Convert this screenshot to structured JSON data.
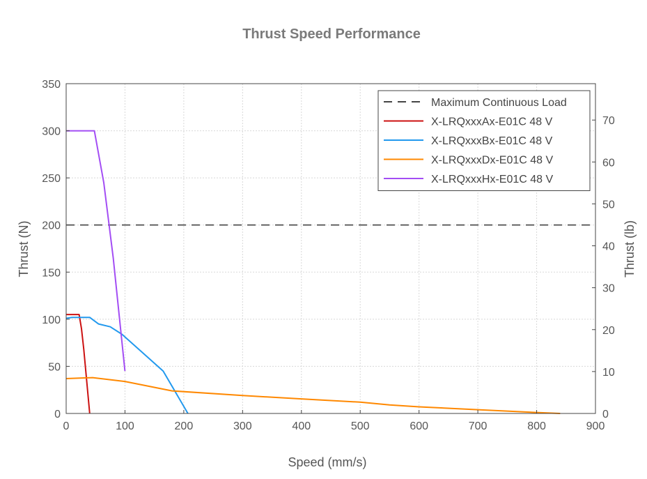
{
  "chart_data": {
    "type": "line",
    "title": "Thrust Speed Performance",
    "xlabel": "Speed (mm/s)",
    "ylabel": "Thrust (N)",
    "y2label": "Thrust (lb)",
    "xlim": [
      0,
      900
    ],
    "ylim": [
      0,
      350
    ],
    "y2lim": [
      0,
      78.68
    ],
    "xticks": [
      0,
      100,
      200,
      300,
      400,
      500,
      600,
      700,
      800,
      900
    ],
    "yticks": [
      0,
      50,
      100,
      150,
      200,
      250,
      300,
      350
    ],
    "y2ticks": [
      0,
      10,
      20,
      30,
      40,
      50,
      60,
      70
    ],
    "grid": true,
    "legend_position": "top-right",
    "reference_line": {
      "name": "Maximum Continuous Load",
      "y": 200,
      "color": "#444444",
      "style": "dashed"
    },
    "series": [
      {
        "name": "X-LRQxxxAx-E01C 48 V",
        "color": "#cc1111",
        "x": [
          0,
          22,
          26,
          30,
          40
        ],
        "y": [
          105,
          105,
          90,
          68,
          0
        ]
      },
      {
        "name": "X-LRQxxxBx-E01C 48 V",
        "color": "#2299ee",
        "x": [
          0,
          10,
          40,
          55,
          75,
          95,
          165,
          207
        ],
        "y": [
          101,
          102,
          102,
          95,
          92,
          84,
          45,
          0
        ]
      },
      {
        "name": "X-LRQxxxDx-E01C 48 V",
        "color": "#ff8800",
        "x": [
          0,
          45,
          100,
          180,
          300,
          400,
          500,
          550,
          600,
          700,
          800,
          840
        ],
        "y": [
          37,
          38,
          34,
          24,
          19,
          15.5,
          12,
          9,
          7,
          4,
          1,
          0
        ]
      },
      {
        "name": "X-LRQxxxHx-E01C 48 V",
        "color": "#a34df4",
        "x": [
          0,
          48,
          64,
          80,
          100
        ],
        "y": [
          300,
          300,
          245,
          165,
          45
        ]
      }
    ]
  }
}
